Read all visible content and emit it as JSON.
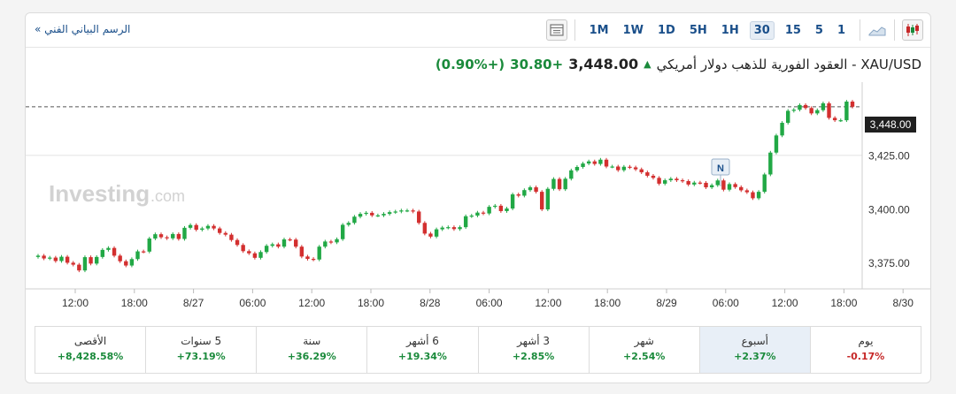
{
  "toolbar": {
    "tech_link": "الرسم البياني الفني »",
    "timeframes": [
      "1M",
      "1W",
      "1D",
      "5H",
      "1H",
      "30",
      "15",
      "5",
      "1"
    ],
    "active_timeframe": "30"
  },
  "instrument": {
    "name": "XAU/USD - العقود الفورية للذهب دولار أمريكي",
    "price": "3,448.00",
    "change": "+30.80",
    "change_pct": "(+0.90%)"
  },
  "watermark": {
    "main": "Investing",
    "suffix": ".com"
  },
  "event_marker": "N",
  "current_price_label": "3,448.00",
  "colors": {
    "up": "#21a845",
    "down": "#d32f2f",
    "accent": "#1a4f8a"
  },
  "chart_data": {
    "type": "candlestick",
    "title": "XAU/USD",
    "ylim": [
      3363,
      3457
    ],
    "y_ticks": [
      "3,375.00",
      "3,400.00",
      "3,425.00"
    ],
    "y_tick_values": [
      3375,
      3400,
      3425
    ],
    "x_ticks": [
      "12:00",
      "18:00",
      "8/27",
      "06:00",
      "12:00",
      "18:00",
      "8/28",
      "06:00",
      "12:00",
      "18:00",
      "8/29",
      "06:00",
      "12:00",
      "18:00",
      "8/30"
    ],
    "reference_level": 3448,
    "series": [
      {
        "close": [
          3378.5,
          3377.2,
          3377.6,
          3376,
          3378,
          3375.2,
          3374.3,
          3371.6,
          3377.8,
          3374.8,
          3377.9,
          3381.2,
          3382.1,
          3378.5,
          3375.9,
          3373.9,
          3376.9,
          3380.5,
          3380.4,
          3386.5,
          3388.5,
          3387.1,
          3386.6,
          3388.6,
          3386.3,
          3391.5,
          3392.8,
          3390.6,
          3391.2,
          3392.4,
          3391.2,
          3389.1,
          3388.3,
          3385.8,
          3383.5,
          3380.6,
          3379.6,
          3377.5,
          3380.2,
          3383.1,
          3383.8,
          3382.7,
          3386.1,
          3386,
          3382.7,
          3378.1,
          3377,
          3376.7,
          3382.7,
          3385.1,
          3384.7,
          3386.2,
          3392.9,
          3393.8,
          3396.7,
          3398,
          3398.5,
          3397.3,
          3397.3,
          3398,
          3398.8,
          3399.1,
          3399.6,
          3399.6,
          3399.1,
          3393.8,
          3388.8,
          3387.4,
          3390.8,
          3391.6,
          3391.8,
          3390.9,
          3391.8,
          3396.9,
          3397.2,
          3398.6,
          3398.2,
          3401.3,
          3401.8,
          3399.3,
          3400.5,
          3407.1,
          3406.5,
          3409.1,
          3410.4,
          3408.3,
          3400.1,
          3409.7,
          3414.3,
          3409.5,
          3414.4,
          3418.3,
          3419.9,
          3421.5,
          3422.5,
          3421.3,
          3423.3,
          3420.1,
          3420.1,
          3418.4,
          3420,
          3419.7,
          3418.8,
          3417.4,
          3415.8,
          3414.8,
          3412.1,
          3413.7,
          3414.4,
          3413.7,
          3413.3,
          3411.7,
          3412.6,
          3412.5,
          3410.4,
          3411.4,
          3413.6,
          3409.3,
          3411.9,
          3410.5,
          3409,
          3408.1,
          3405.3,
          3408.3,
          3416.4,
          3426.6,
          3434.6,
          3440.5,
          3446.1,
          3446.6,
          3448.8,
          3447.4,
          3444.9,
          3446.4,
          3449.6,
          3442.8,
          3441.7,
          3441.7,
          3450.4,
          3448
        ]
      }
    ]
  },
  "performance": [
    {
      "label": "يوم",
      "value": "-0.17%",
      "dir": "neg"
    },
    {
      "label": "أسبوع",
      "value": "+2.37%",
      "dir": "pos"
    },
    {
      "label": "شهر",
      "value": "+2.54%",
      "dir": "pos"
    },
    {
      "label": "3 أشهر",
      "value": "+2.85%",
      "dir": "pos"
    },
    {
      "label": "6 أشهر",
      "value": "+19.34%",
      "dir": "pos"
    },
    {
      "label": "سنة",
      "value": "+36.29%",
      "dir": "pos"
    },
    {
      "label": "5 سنوات",
      "value": "+73.19%",
      "dir": "pos"
    },
    {
      "label": "الأقصى",
      "value": "+8,428.58%",
      "dir": "pos"
    }
  ],
  "active_period": "أسبوع"
}
